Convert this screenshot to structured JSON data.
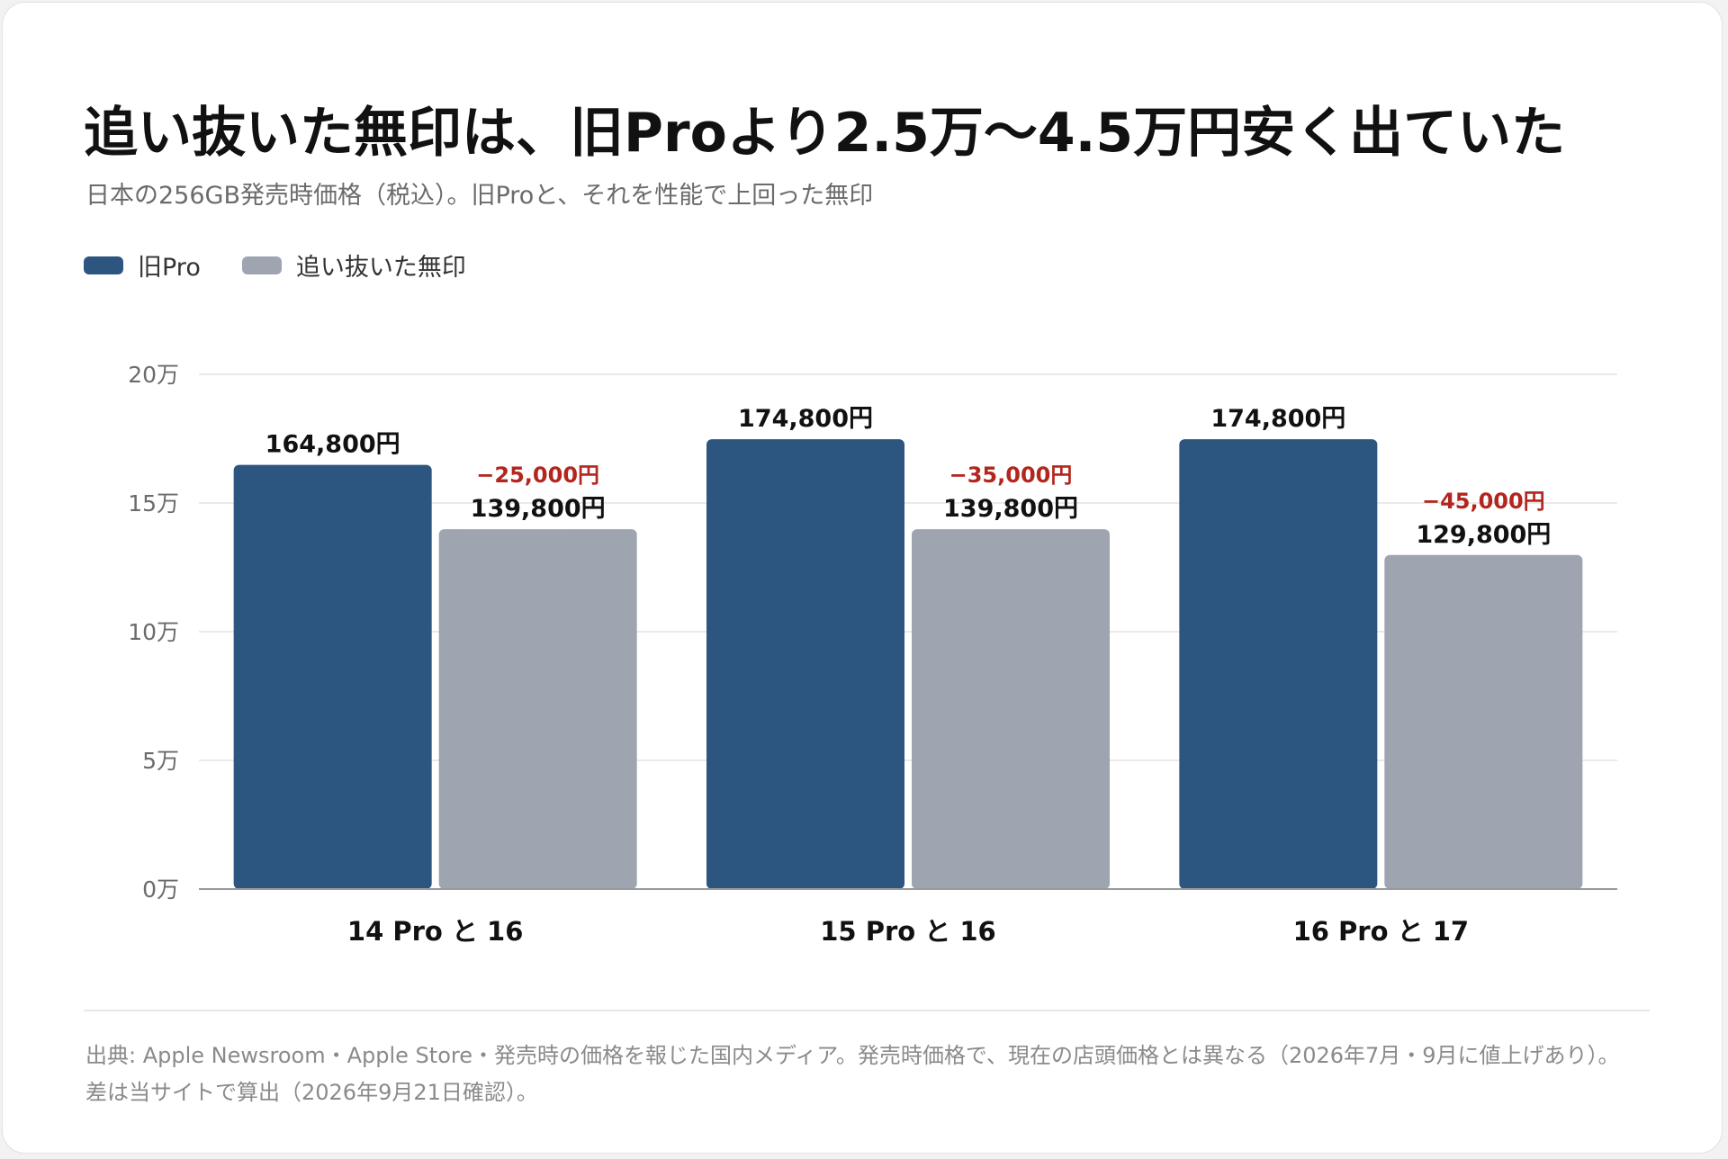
{
  "title": "追い抜いた無印は、旧Proより2.5万〜4.5万円安く出ていた",
  "subtitle": "日本の256GB発売時価格（税込）。旧Proと、それを性能で上回った無印",
  "colors": {
    "pro": "#2c5580",
    "base": "#9ea4b0",
    "diff": "#b3261e",
    "grid": "#e4e4e4",
    "axis": "#9a9a9a",
    "tick": "#6b6b6b"
  },
  "chart_data": {
    "type": "bar",
    "categories": [
      "14 Pro と 16",
      "15 Pro と 16",
      "16 Pro と 17"
    ],
    "series": [
      {
        "name": "旧Pro",
        "values": [
          164800,
          174800,
          174800
        ],
        "labels": [
          "164,800円",
          "174,800円",
          "174,800円"
        ]
      },
      {
        "name": "追い抜いた無印",
        "values": [
          139800,
          139800,
          129800
        ],
        "labels": [
          "139,800円",
          "139,800円",
          "129,800円"
        ]
      }
    ],
    "differences": [
      "−25,000円",
      "−35,000円",
      "−45,000円"
    ],
    "ylim": [
      0,
      200000
    ],
    "yticks": [
      0,
      50000,
      100000,
      150000,
      200000
    ],
    "ytick_labels": [
      "0万",
      "5万",
      "10万",
      "15万",
      "20万"
    ],
    "legend": "top-left",
    "grid": true
  },
  "footnote": {
    "line1": "出典: Apple Newsroom・Apple Store・発売時の価格を報じた国内メディア。発売時価格で、現在の店頭価格とは異なる（2026年7月・9月に値上げあり）。",
    "line2": "差は当サイトで算出（2026年9月21日確認）。"
  }
}
